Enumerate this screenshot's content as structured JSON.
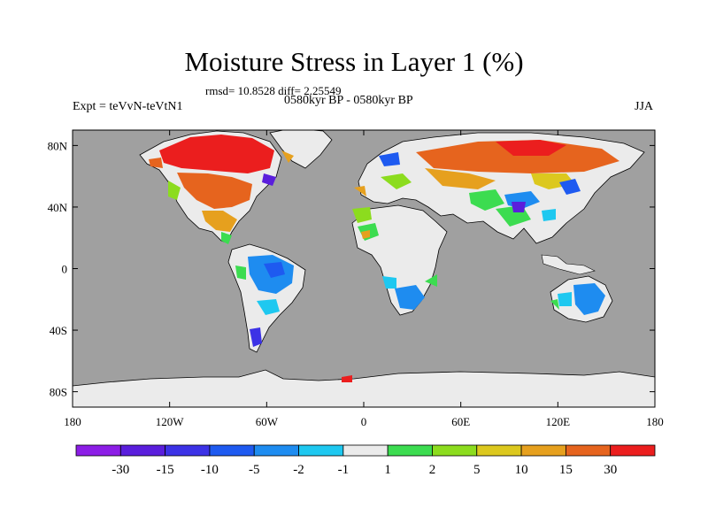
{
  "title": "Moisture Stress in Layer 1 (%)",
  "subtitle_stats": "rmsd= 10.8528 diff= 2.25549",
  "subtitle_period": "0580kyr BP - 0580kyr BP",
  "left_label": "Expt = teVvN-teVtN1",
  "right_label": "JJA",
  "colors": {
    "ocean": "#a0a0a0",
    "neutral_land": "#ebebeb"
  },
  "map_data": {
    "lon_ticks": [
      "180",
      "120W",
      "60W",
      "0",
      "60E",
      "120E",
      "180"
    ],
    "lat_ticks": [
      "80N",
      "40N",
      "0",
      "40S",
      "80S"
    ],
    "colorbar": {
      "labels": [
        "-30",
        "-15",
        "-10",
        "-5",
        "-2",
        "-1",
        "1",
        "2",
        "5",
        "10",
        "15",
        "30"
      ],
      "colors": [
        "#8c1ee6",
        "#5a1edc",
        "#3c32e6",
        "#1e5af0",
        "#1e8cf0",
        "#1ec8f0",
        "#ebebeb",
        "#3cdc50",
        "#8cdc1e",
        "#dcc81e",
        "#e6a01e",
        "#e6641e",
        "#eb1e1e"
      ]
    }
  }
}
